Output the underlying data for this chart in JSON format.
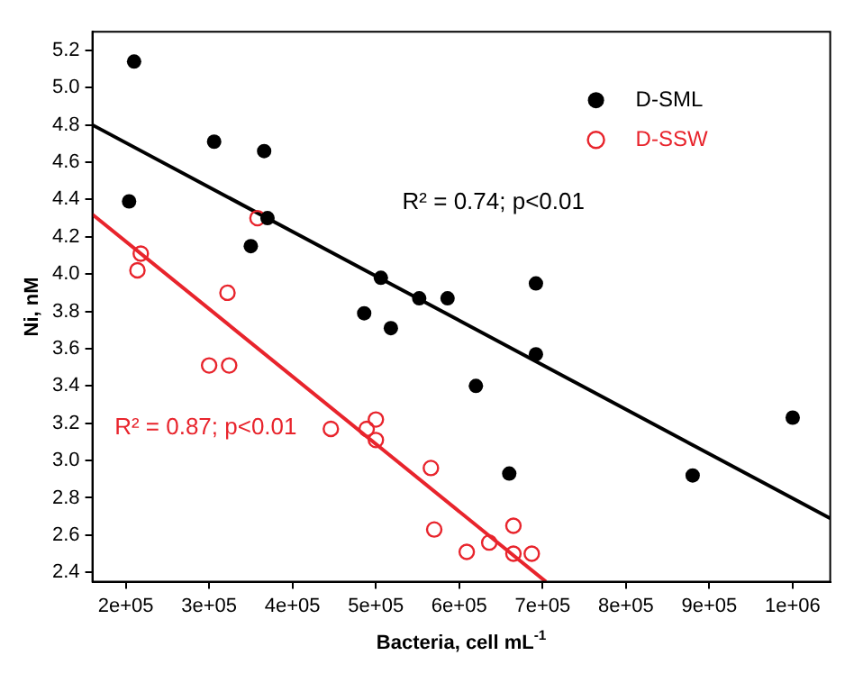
{
  "chart_data": {
    "type": "scatter",
    "xlabel": "Bacteria, cell mL$^{-1}$",
    "ylabel": "Ni, nM",
    "xlim": [
      160000,
      1045000
    ],
    "ylim": [
      2.35,
      5.3
    ],
    "xticks": [
      {
        "value": 200000,
        "label": "2e+05"
      },
      {
        "value": 300000,
        "label": "3e+05"
      },
      {
        "value": 400000,
        "label": "4e+05"
      },
      {
        "value": 500000,
        "label": "5e+05"
      },
      {
        "value": 600000,
        "label": "6e+05"
      },
      {
        "value": 700000,
        "label": "7e+05"
      },
      {
        "value": 800000,
        "label": "8e+05"
      },
      {
        "value": 900000,
        "label": "9e+05"
      },
      {
        "value": 1000000,
        "label": "1e+06"
      }
    ],
    "yticks": [
      2.4,
      2.6,
      2.8,
      {
        "value": 3,
        "label": "3.0"
      },
      3.2,
      3.4,
      3.6,
      3.8,
      {
        "value": 4,
        "label": "4.0"
      },
      4.2,
      4.4,
      4.6,
      4.8,
      {
        "value": 5,
        "label": "5.0"
      },
      5.2
    ],
    "grid": false,
    "legend": "top right",
    "series": [
      {
        "name": "D-SML",
        "color": "#000000",
        "marker": "circle",
        "x": [
          210000,
          204000,
          306000,
          366000,
          370000,
          350000,
          506000,
          486000,
          518000,
          552000,
          586000,
          692000,
          620000,
          692000,
          660000,
          880000,
          1000000
        ],
        "values": [
          5.14,
          4.39,
          4.71,
          4.66,
          4.3,
          4.15,
          3.98,
          3.79,
          3.71,
          3.87,
          3.87,
          3.95,
          3.4,
          3.57,
          2.93,
          2.92,
          3.23
        ]
      },
      {
        "name": "D-SSW",
        "color": "#e8242c",
        "marker": "circle",
        "x": [
          218000,
          214000,
          322000,
          358000,
          300000,
          324000,
          446000,
          489000,
          500000,
          500000,
          566000,
          570000,
          609000,
          636000,
          665000,
          665000,
          687000
        ],
        "values": [
          4.11,
          4.02,
          3.9,
          4.3,
          3.51,
          3.51,
          3.17,
          3.17,
          3.22,
          3.11,
          2.96,
          2.63,
          2.51,
          2.56,
          2.65,
          2.5,
          2.5
        ]
      },
      {
        "type": "line",
        "color": "#000000",
        "x": [
          160000,
          1045000
        ],
        "values": [
          4.8,
          2.69
        ]
      },
      {
        "type": "line",
        "color": "#e8242c",
        "x": [
          160000,
          704000
        ],
        "values": [
          4.32,
          2.35
        ]
      }
    ],
    "annotations": [
      "R² = 0.74; p<0.01",
      "R² = 0.87; p<0.01"
    ]
  }
}
